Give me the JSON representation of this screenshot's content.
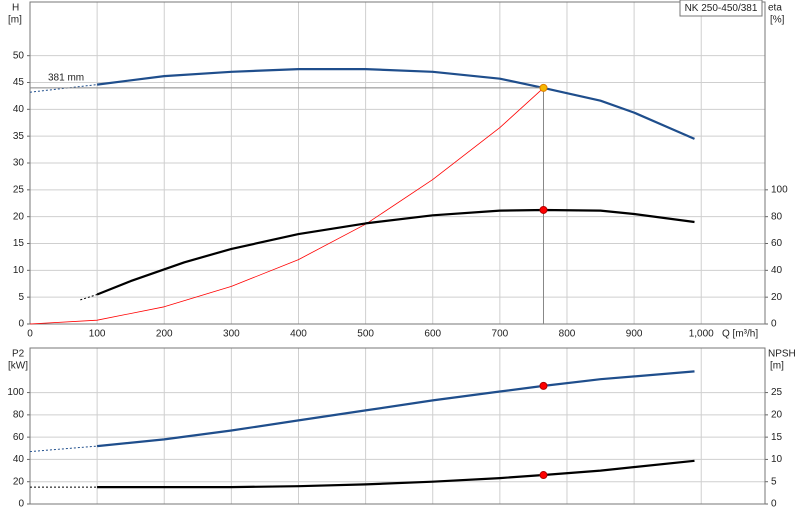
{
  "chart_data": [
    {
      "type": "line",
      "title": "NK 250-450/381",
      "ylabel": "H",
      "yunit": "[m]",
      "y2label": "eta",
      "y2unit": "[%]",
      "xlabel": "Q [m³/h]",
      "annotation": "381 mm",
      "xlim": [
        0,
        1095
      ],
      "ylim": [
        0,
        60
      ],
      "y2lim": [
        0,
        240
      ],
      "xticks": [
        0,
        100,
        200,
        300,
        400,
        500,
        600,
        700,
        800,
        900,
        {
          "value": 1000,
          "label": "1,000"
        }
      ],
      "yticks": [
        0,
        5,
        10,
        15,
        20,
        25,
        30,
        35,
        40,
        45,
        50
      ],
      "y2ticks": [
        0,
        20,
        40,
        60,
        80,
        100
      ],
      "grid": true,
      "series": [
        {
          "color": "#1f4e8c",
          "style": "dashed",
          "x": [
            0,
            100
          ],
          "values": [
            43.2,
            44.6
          ]
        },
        {
          "color": "#1f4e8c",
          "x": [
            100,
            200,
            300,
            400,
            500,
            600,
            700,
            765,
            850,
            900,
            990
          ],
          "values": [
            44.6,
            46.2,
            47,
            47.5,
            47.5,
            47,
            45.7,
            44,
            41.6,
            39.4,
            34.5
          ]
        },
        {
          "color": "#ff0000",
          "style": "thin",
          "x": [
            0,
            100,
            200,
            300,
            400,
            500,
            600,
            700,
            765
          ],
          "values": [
            0,
            0.7,
            3.2,
            7,
            12,
            18.6,
            26.9,
            36.6,
            44
          ]
        },
        {
          "color": "#000000",
          "style": "dashed",
          "axis": "y2",
          "x": [
            75,
            100
          ],
          "values": [
            18,
            22
          ]
        },
        {
          "color": "#000000",
          "axis": "y2",
          "x": [
            100,
            150,
            230,
            300,
            400,
            500,
            600,
            700,
            765,
            850,
            900,
            990
          ],
          "values": [
            22,
            32,
            46,
            56,
            67,
            75,
            81,
            84.5,
            85,
            84.5,
            82,
            76
          ]
        },
        {
          "color": "#f5b800",
          "style": "point",
          "guides": true,
          "x": [
            765
          ],
          "values": [
            44
          ]
        },
        {
          "color": "#ff0000",
          "style": "point",
          "axis": "y2",
          "x": [
            765
          ],
          "values": [
            85
          ]
        }
      ]
    },
    {
      "type": "line",
      "ylabel": "P2",
      "yunit": "[kW]",
      "y2label": "NPSH",
      "y2unit": "[m]",
      "ylim": [
        0,
        140
      ],
      "y2lim": [
        0,
        35
      ],
      "yticks": [
        0,
        20,
        40,
        60,
        80,
        100
      ],
      "y2ticks": [
        0,
        5,
        10,
        15,
        20,
        25
      ],
      "grid": true,
      "series": [
        {
          "color": "#1f4e8c",
          "style": "dashed",
          "x": [
            0,
            100
          ],
          "values": [
            47,
            52
          ]
        },
        {
          "color": "#1f4e8c",
          "x": [
            100,
            200,
            300,
            400,
            500,
            600,
            700,
            765,
            850,
            990
          ],
          "values": [
            52,
            58,
            66,
            75,
            84,
            93,
            101,
            106,
            112,
            119
          ]
        },
        {
          "color": "#000000",
          "style": "dashed",
          "axis": "y2",
          "x": [
            0,
            100
          ],
          "values": [
            3.8,
            3.8
          ]
        },
        {
          "color": "#000000",
          "axis": "y2",
          "x": [
            100,
            300,
            400,
            500,
            600,
            700,
            765,
            850,
            990
          ],
          "values": [
            3.8,
            3.8,
            4,
            4.4,
            5,
            5.8,
            6.5,
            7.5,
            9.7
          ]
        },
        {
          "color": "#ff0000",
          "style": "point",
          "x": [
            765
          ],
          "values": [
            106
          ]
        },
        {
          "color": "#ff0000",
          "style": "point",
          "axis": "y2",
          "x": [
            765
          ],
          "values": [
            6.5
          ]
        }
      ]
    }
  ]
}
